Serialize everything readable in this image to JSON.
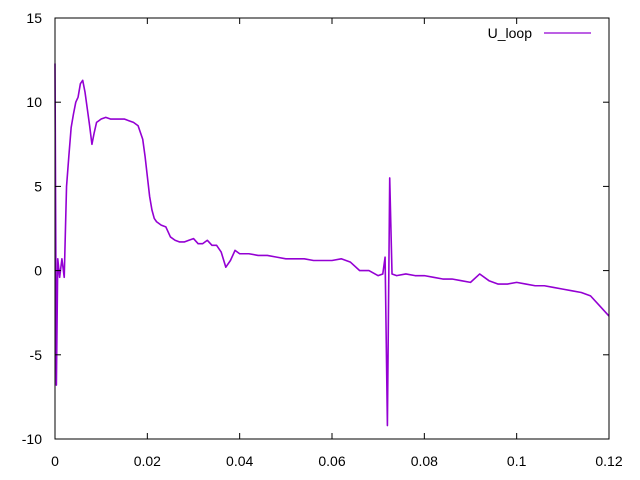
{
  "chart_data": {
    "type": "line",
    "title": "",
    "xlabel": "",
    "ylabel": "",
    "xlim": [
      0,
      0.12
    ],
    "ylim": [
      -10,
      15
    ],
    "xticks": [
      0,
      0.02,
      0.04,
      0.06,
      0.08,
      0.1,
      0.12
    ],
    "xtick_labels": [
      "0",
      "0.02",
      "0.04",
      "0.06",
      "0.08",
      "0.1",
      "0.12"
    ],
    "yticks": [
      -10,
      -5,
      0,
      5,
      10,
      15
    ],
    "ytick_labels": [
      "-10",
      "-5",
      "0",
      "5",
      "10",
      "15"
    ],
    "grid": false,
    "legend_position": "top-right",
    "series": [
      {
        "name": "U_loop",
        "color": "#9400d3",
        "x": [
          0,
          0.0003,
          0.0006,
          0.001,
          0.0015,
          0.002,
          0.0025,
          0.003,
          0.0035,
          0.004,
          0.0045,
          0.005,
          0.0055,
          0.006,
          0.0065,
          0.007,
          0.0075,
          0.008,
          0.0085,
          0.009,
          0.0095,
          0.01,
          0.011,
          0.012,
          0.013,
          0.014,
          0.015,
          0.016,
          0.017,
          0.018,
          0.019,
          0.0195,
          0.02,
          0.0205,
          0.021,
          0.0215,
          0.022,
          0.023,
          0.024,
          0.025,
          0.026,
          0.027,
          0.028,
          0.029,
          0.03,
          0.031,
          0.032,
          0.033,
          0.034,
          0.035,
          0.036,
          0.037,
          0.038,
          0.039,
          0.04,
          0.042,
          0.044,
          0.046,
          0.048,
          0.05,
          0.052,
          0.054,
          0.056,
          0.058,
          0.06,
          0.062,
          0.064,
          0.066,
          0.068,
          0.07,
          0.071,
          0.0715,
          0.072,
          0.0725,
          0.073,
          0.074,
          0.076,
          0.078,
          0.08,
          0.082,
          0.084,
          0.086,
          0.088,
          0.09,
          0.092,
          0.094,
          0.096,
          0.098,
          0.1,
          0.102,
          0.104,
          0.106,
          0.108,
          0.11,
          0.112,
          0.114,
          0.116,
          0.118,
          0.12
        ],
        "y": [
          12.3,
          -6.8,
          0.7,
          -0.4,
          0.7,
          -0.4,
          5.0,
          6.8,
          8.5,
          9.3,
          10.0,
          10.3,
          11.1,
          11.3,
          10.6,
          9.6,
          8.6,
          7.5,
          8.2,
          8.8,
          8.9,
          9.0,
          9.1,
          9.0,
          9.0,
          9.0,
          9.0,
          8.9,
          8.8,
          8.6,
          7.8,
          6.8,
          5.6,
          4.4,
          3.6,
          3.1,
          2.9,
          2.7,
          2.6,
          2.0,
          1.8,
          1.7,
          1.7,
          1.8,
          1.9,
          1.6,
          1.6,
          1.8,
          1.5,
          1.5,
          1.1,
          0.2,
          0.6,
          1.2,
          1.0,
          1.0,
          0.9,
          0.9,
          0.8,
          0.7,
          0.7,
          0.7,
          0.6,
          0.6,
          0.6,
          0.7,
          0.5,
          0.0,
          0.0,
          -0.3,
          -0.2,
          0.8,
          -9.2,
          5.5,
          -0.2,
          -0.3,
          -0.2,
          -0.3,
          -0.3,
          -0.4,
          -0.5,
          -0.5,
          -0.6,
          -0.7,
          -0.2,
          -0.6,
          -0.8,
          -0.8,
          -0.7,
          -0.8,
          -0.9,
          -0.9,
          -1.0,
          -1.1,
          -1.2,
          -1.3,
          -1.5,
          -2.1,
          -2.7
        ]
      }
    ]
  }
}
